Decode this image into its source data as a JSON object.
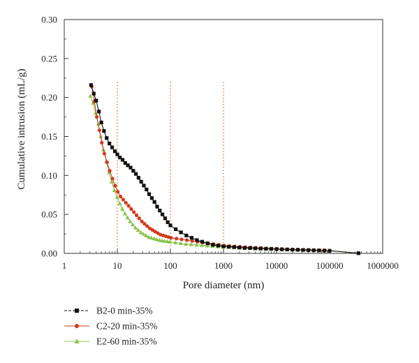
{
  "chart_data": {
    "type": "line",
    "xlabel": "Pore diameter (nm)",
    "ylabel": "Cumulative intrusion (mL/g)",
    "xscale": "log",
    "xlim": [
      1,
      1000000
    ],
    "ylim": [
      0,
      0.3
    ],
    "x_ticks": [
      1,
      10,
      100,
      1000,
      10000,
      100000,
      1000000
    ],
    "x_tick_labels": [
      "1",
      "10",
      "100",
      "1000",
      "10000",
      "100000",
      "1000000"
    ],
    "y_ticks": [
      0.0,
      0.05,
      0.1,
      0.15,
      0.2,
      0.25,
      0.3
    ],
    "y_tick_labels": [
      "0.00",
      "0.05",
      "0.10",
      "0.15",
      "0.20",
      "0.25",
      "0.30"
    ],
    "grid": false,
    "legend_position": "below",
    "reference_lines": [
      {
        "x": 10,
        "color": "#e8542a",
        "style": "dotted"
      },
      {
        "x": 100,
        "color": "#e8542a",
        "style": "dotted"
      },
      {
        "x": 1000,
        "color": "#e8542a",
        "style": "dotted"
      }
    ],
    "series": [
      {
        "name": "B2-0 min-35%",
        "color": "#111111",
        "marker": "square",
        "x": [
          3.2,
          3.6,
          4.0,
          4.5,
          5.0,
          5.6,
          6.3,
          7.1,
          8.0,
          9.0,
          10.0,
          11.2,
          12.6,
          14.1,
          15.8,
          17.8,
          20,
          22.4,
          25.1,
          28.2,
          31.6,
          35.5,
          39.8,
          44.7,
          50.1,
          56.2,
          63.1,
          70.8,
          79.4,
          89.1,
          100,
          126,
          158,
          200,
          251,
          316,
          398,
          501,
          631,
          794,
          1000,
          1260,
          1585,
          1995,
          2512,
          3162,
          3981,
          5012,
          6310,
          7943,
          10000,
          12590,
          15850,
          19950,
          25120,
          31620,
          39810,
          50120,
          63100,
          79430,
          100000,
          350000
        ],
        "y": [
          0.216,
          0.205,
          0.196,
          0.182,
          0.168,
          0.157,
          0.148,
          0.141,
          0.136,
          0.131,
          0.127,
          0.123,
          0.12,
          0.116,
          0.113,
          0.11,
          0.106,
          0.102,
          0.097,
          0.092,
          0.087,
          0.082,
          0.076,
          0.071,
          0.066,
          0.06,
          0.055,
          0.05,
          0.045,
          0.04,
          0.036,
          0.031,
          0.027,
          0.023,
          0.02,
          0.017,
          0.015,
          0.013,
          0.011,
          0.01,
          0.009,
          0.0085,
          0.008,
          0.0075,
          0.007,
          0.0068,
          0.0065,
          0.0062,
          0.006,
          0.0058,
          0.0055,
          0.0052,
          0.005,
          0.0048,
          0.0046,
          0.0044,
          0.0042,
          0.004,
          0.0038,
          0.0036,
          0.0034,
          0.0003
        ]
      },
      {
        "name": "C2-20 min-35%",
        "color": "#d2391b",
        "marker": "circle",
        "x": [
          3.3,
          3.7,
          4.1,
          4.6,
          5.1,
          5.7,
          6.4,
          7.2,
          8.1,
          9.1,
          10.2,
          11.5,
          12.9,
          14.5,
          16.3,
          18.3,
          20.5,
          23.0,
          25.8,
          29.0,
          32.5,
          36.5,
          41,
          46,
          51.6,
          57.9,
          65,
          73,
          82,
          92,
          103,
          130,
          163,
          205,
          258,
          325,
          409,
          515,
          648,
          816,
          1027,
          1293,
          1628,
          2050,
          2580,
          3250,
          4090,
          5150,
          6480,
          8160,
          10270,
          12930,
          16280,
          20500,
          25800,
          32500,
          40900,
          51500,
          64800,
          81600
        ],
        "y": [
          0.214,
          0.195,
          0.175,
          0.158,
          0.142,
          0.128,
          0.117,
          0.106,
          0.096,
          0.087,
          0.079,
          0.073,
          0.069,
          0.065,
          0.061,
          0.057,
          0.053,
          0.049,
          0.045,
          0.041,
          0.038,
          0.035,
          0.032,
          0.03,
          0.028,
          0.026,
          0.024,
          0.023,
          0.022,
          0.021,
          0.02,
          0.019,
          0.018,
          0.017,
          0.016,
          0.015,
          0.014,
          0.013,
          0.012,
          0.011,
          0.01,
          0.0095,
          0.009,
          0.0085,
          0.008,
          0.0076,
          0.0072,
          0.0068,
          0.0064,
          0.006,
          0.0058,
          0.0055,
          0.0052,
          0.005,
          0.0048,
          0.0046,
          0.0044,
          0.0042,
          0.004,
          0.0038
        ]
      },
      {
        "name": "E2-60 min-35%",
        "color": "#8bc34a",
        "marker": "triangle",
        "x": [
          3.1,
          3.5,
          3.9,
          4.4,
          4.9,
          5.5,
          6.2,
          7.0,
          7.8,
          8.8,
          9.9,
          11.1,
          12.4,
          13.9,
          15.6,
          17.5,
          19.6,
          22.0,
          24.7,
          27.7,
          31.1,
          34.9,
          39.1,
          43.9,
          49.3,
          55.3,
          62.0,
          69.6,
          78.1,
          87.6,
          98.3,
          124,
          156,
          196,
          247,
          311,
          391,
          493,
          620,
          781,
          983,
          1238,
          1558,
          1962,
          2470,
          3109,
          3914,
          4928,
          6204,
          7810,
          9832,
          12378,
          15583,
          19618,
          24698,
          31093,
          39143,
          49279,
          62039,
          78103,
          98326,
          350000
        ],
        "y": [
          0.202,
          0.193,
          0.18,
          0.166,
          0.15,
          0.133,
          0.118,
          0.104,
          0.092,
          0.081,
          0.072,
          0.064,
          0.057,
          0.051,
          0.046,
          0.041,
          0.037,
          0.033,
          0.03,
          0.027,
          0.025,
          0.023,
          0.021,
          0.02,
          0.019,
          0.018,
          0.017,
          0.0165,
          0.016,
          0.0155,
          0.015,
          0.014,
          0.013,
          0.012,
          0.0115,
          0.011,
          0.0105,
          0.01,
          0.0095,
          0.009,
          0.0086,
          0.0082,
          0.0078,
          0.0074,
          0.0071,
          0.0068,
          0.0065,
          0.0062,
          0.006,
          0.0058,
          0.0056,
          0.0054,
          0.0052,
          0.005,
          0.0048,
          0.0046,
          0.0044,
          0.0042,
          0.004,
          0.0038,
          0.0036,
          0.0002
        ]
      }
    ]
  }
}
